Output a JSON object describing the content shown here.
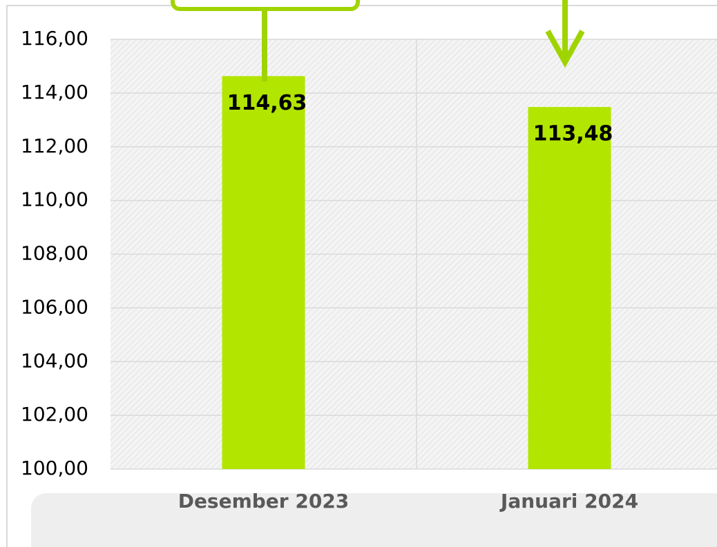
{
  "chart_data": {
    "type": "bar",
    "categories": [
      "Desember 2023",
      "Januari 2024"
    ],
    "values": [
      114.63,
      113.48
    ],
    "value_labels": [
      "114,63",
      "113,48"
    ],
    "color": "#b2e500",
    "ylim": [
      100,
      116
    ],
    "yticks": [
      {
        "value": 100,
        "label": "100,00"
      },
      {
        "value": 102,
        "label": "102,00"
      },
      {
        "value": 104,
        "label": "104,00"
      },
      {
        "value": 106,
        "label": "106,00"
      },
      {
        "value": 108,
        "label": "108,00"
      },
      {
        "value": 110,
        "label": "110,00"
      },
      {
        "value": 112,
        "label": "112,00"
      },
      {
        "value": 114,
        "label": "114,00"
      },
      {
        "value": 116,
        "label": "116,00"
      }
    ],
    "grid": true
  }
}
